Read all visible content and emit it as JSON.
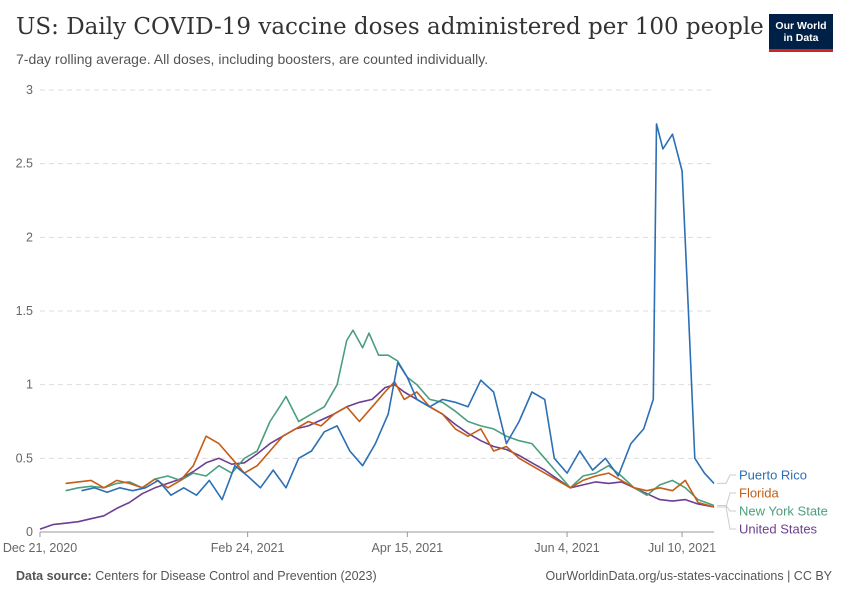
{
  "header": {
    "title": "US: Daily COVID-19 vaccine doses administered per 100 people",
    "subtitle": "7-day rolling average. All doses, including boosters, are counted individually.",
    "logo_line1": "Our World",
    "logo_line2": "in Data"
  },
  "footer": {
    "source_label": "Data source:",
    "source_text": "Centers for Disease Control and Prevention (2023)",
    "credit": "OurWorldinData.org/us-states-vaccinations | CC BY"
  },
  "chart_data": {
    "type": "line",
    "title": "US: Daily COVID-19 vaccine doses administered per 100 people",
    "subtitle": "7-day rolling average. All doses, including boosters, are counted individually.",
    "xlabel": "",
    "ylabel": "",
    "x_range": [
      "2020-12-21",
      "2021-07-20"
    ],
    "ylim": [
      0,
      3
    ],
    "y_ticks": [
      0,
      0.5,
      1,
      1.5,
      2,
      2.5,
      3
    ],
    "y_tick_labels": [
      "0",
      "0.5",
      "1",
      "1.5",
      "2",
      "2.5",
      "3"
    ],
    "x_ticks": [
      "2020-12-21",
      "2021-02-24",
      "2021-04-15",
      "2021-06-04",
      "2021-07-10"
    ],
    "x_tick_labels": [
      "Dec 21, 2020",
      "Feb 24, 2021",
      "Apr 15, 2021",
      "Jun 4, 2021",
      "Jul 10, 2021"
    ],
    "grid": "horizontal dashed",
    "legend_placement": "right, labels at line ends",
    "series": [
      {
        "name": "United States",
        "color": "#6d3e91",
        "points": [
          [
            "2020-12-21",
            0.02
          ],
          [
            "2020-12-25",
            0.05
          ],
          [
            "2020-12-29",
            0.06
          ],
          [
            "2021-01-02",
            0.07
          ],
          [
            "2021-01-06",
            0.09
          ],
          [
            "2021-01-10",
            0.11
          ],
          [
            "2021-01-14",
            0.16
          ],
          [
            "2021-01-18",
            0.2
          ],
          [
            "2021-01-22",
            0.26
          ],
          [
            "2021-01-26",
            0.3
          ],
          [
            "2021-01-30",
            0.33
          ],
          [
            "2021-02-03",
            0.36
          ],
          [
            "2021-02-07",
            0.41
          ],
          [
            "2021-02-11",
            0.47
          ],
          [
            "2021-02-15",
            0.5
          ],
          [
            "2021-02-19",
            0.46
          ],
          [
            "2021-02-23",
            0.47
          ],
          [
            "2021-02-27",
            0.53
          ],
          [
            "2021-03-03",
            0.6
          ],
          [
            "2021-03-07",
            0.65
          ],
          [
            "2021-03-11",
            0.7
          ],
          [
            "2021-03-15",
            0.72
          ],
          [
            "2021-03-19",
            0.76
          ],
          [
            "2021-03-23",
            0.8
          ],
          [
            "2021-03-27",
            0.85
          ],
          [
            "2021-03-31",
            0.88
          ],
          [
            "2021-04-04",
            0.9
          ],
          [
            "2021-04-08",
            0.98
          ],
          [
            "2021-04-11",
            1.0
          ],
          [
            "2021-04-14",
            0.95
          ],
          [
            "2021-04-18",
            0.9
          ],
          [
            "2021-04-22",
            0.85
          ],
          [
            "2021-04-26",
            0.8
          ],
          [
            "2021-04-30",
            0.73
          ],
          [
            "2021-05-04",
            0.67
          ],
          [
            "2021-05-08",
            0.62
          ],
          [
            "2021-05-12",
            0.58
          ],
          [
            "2021-05-16",
            0.56
          ],
          [
            "2021-05-20",
            0.52
          ],
          [
            "2021-05-24",
            0.47
          ],
          [
            "2021-05-28",
            0.42
          ],
          [
            "2021-06-01",
            0.36
          ],
          [
            "2021-06-05",
            0.3
          ],
          [
            "2021-06-09",
            0.32
          ],
          [
            "2021-06-13",
            0.34
          ],
          [
            "2021-06-17",
            0.33
          ],
          [
            "2021-06-21",
            0.34
          ],
          [
            "2021-06-25",
            0.3
          ],
          [
            "2021-06-29",
            0.26
          ],
          [
            "2021-07-03",
            0.22
          ],
          [
            "2021-07-07",
            0.21
          ],
          [
            "2021-07-11",
            0.22
          ],
          [
            "2021-07-15",
            0.19
          ],
          [
            "2021-07-20",
            0.17
          ]
        ]
      },
      {
        "name": "New York State",
        "color": "#4c9f7e",
        "points": [
          [
            "2020-12-29",
            0.28
          ],
          [
            "2021-01-02",
            0.3
          ],
          [
            "2021-01-06",
            0.31
          ],
          [
            "2021-01-10",
            0.3
          ],
          [
            "2021-01-14",
            0.33
          ],
          [
            "2021-01-18",
            0.34
          ],
          [
            "2021-01-22",
            0.3
          ],
          [
            "2021-01-26",
            0.36
          ],
          [
            "2021-01-30",
            0.38
          ],
          [
            "2021-02-03",
            0.35
          ],
          [
            "2021-02-07",
            0.4
          ],
          [
            "2021-02-11",
            0.38
          ],
          [
            "2021-02-15",
            0.45
          ],
          [
            "2021-02-19",
            0.4
          ],
          [
            "2021-02-23",
            0.5
          ],
          [
            "2021-02-27",
            0.55
          ],
          [
            "2021-03-03",
            0.75
          ],
          [
            "2021-03-06",
            0.85
          ],
          [
            "2021-03-08",
            0.92
          ],
          [
            "2021-03-12",
            0.75
          ],
          [
            "2021-03-16",
            0.8
          ],
          [
            "2021-03-20",
            0.85
          ],
          [
            "2021-03-24",
            1.0
          ],
          [
            "2021-03-27",
            1.3
          ],
          [
            "2021-03-29",
            1.37
          ],
          [
            "2021-04-01",
            1.25
          ],
          [
            "2021-04-03",
            1.35
          ],
          [
            "2021-04-06",
            1.2
          ],
          [
            "2021-04-09",
            1.2
          ],
          [
            "2021-04-12",
            1.16
          ],
          [
            "2021-04-15",
            1.05
          ],
          [
            "2021-04-18",
            1.0
          ],
          [
            "2021-04-22",
            0.9
          ],
          [
            "2021-04-26",
            0.88
          ],
          [
            "2021-04-30",
            0.82
          ],
          [
            "2021-05-04",
            0.75
          ],
          [
            "2021-05-08",
            0.72
          ],
          [
            "2021-05-12",
            0.7
          ],
          [
            "2021-05-16",
            0.65
          ],
          [
            "2021-05-20",
            0.62
          ],
          [
            "2021-05-24",
            0.6
          ],
          [
            "2021-05-28",
            0.5
          ],
          [
            "2021-06-01",
            0.4
          ],
          [
            "2021-06-05",
            0.3
          ],
          [
            "2021-06-09",
            0.38
          ],
          [
            "2021-06-13",
            0.4
          ],
          [
            "2021-06-17",
            0.45
          ],
          [
            "2021-06-21",
            0.38
          ],
          [
            "2021-06-25",
            0.3
          ],
          [
            "2021-06-29",
            0.25
          ],
          [
            "2021-07-03",
            0.32
          ],
          [
            "2021-07-07",
            0.35
          ],
          [
            "2021-07-11",
            0.3
          ],
          [
            "2021-07-15",
            0.22
          ],
          [
            "2021-07-20",
            0.18
          ]
        ]
      },
      {
        "name": "Florida",
        "color": "#c45d16",
        "points": [
          [
            "2020-12-29",
            0.33
          ],
          [
            "2021-01-02",
            0.34
          ],
          [
            "2021-01-06",
            0.35
          ],
          [
            "2021-01-10",
            0.3
          ],
          [
            "2021-01-14",
            0.35
          ],
          [
            "2021-01-18",
            0.33
          ],
          [
            "2021-01-22",
            0.3
          ],
          [
            "2021-01-26",
            0.36
          ],
          [
            "2021-01-30",
            0.3
          ],
          [
            "2021-02-03",
            0.35
          ],
          [
            "2021-02-07",
            0.45
          ],
          [
            "2021-02-11",
            0.65
          ],
          [
            "2021-02-15",
            0.6
          ],
          [
            "2021-02-19",
            0.5
          ],
          [
            "2021-02-23",
            0.4
          ],
          [
            "2021-02-27",
            0.45
          ],
          [
            "2021-03-03",
            0.55
          ],
          [
            "2021-03-07",
            0.65
          ],
          [
            "2021-03-11",
            0.7
          ],
          [
            "2021-03-15",
            0.75
          ],
          [
            "2021-03-19",
            0.72
          ],
          [
            "2021-03-23",
            0.8
          ],
          [
            "2021-03-27",
            0.85
          ],
          [
            "2021-03-31",
            0.75
          ],
          [
            "2021-04-04",
            0.85
          ],
          [
            "2021-04-08",
            0.95
          ],
          [
            "2021-04-11",
            1.02
          ],
          [
            "2021-04-14",
            0.9
          ],
          [
            "2021-04-18",
            0.95
          ],
          [
            "2021-04-22",
            0.85
          ],
          [
            "2021-04-26",
            0.8
          ],
          [
            "2021-04-30",
            0.7
          ],
          [
            "2021-05-04",
            0.65
          ],
          [
            "2021-05-08",
            0.7
          ],
          [
            "2021-05-12",
            0.55
          ],
          [
            "2021-05-16",
            0.58
          ],
          [
            "2021-05-20",
            0.5
          ],
          [
            "2021-05-24",
            0.45
          ],
          [
            "2021-05-28",
            0.4
          ],
          [
            "2021-06-01",
            0.35
          ],
          [
            "2021-06-05",
            0.3
          ],
          [
            "2021-06-09",
            0.35
          ],
          [
            "2021-06-13",
            0.38
          ],
          [
            "2021-06-17",
            0.4
          ],
          [
            "2021-06-21",
            0.35
          ],
          [
            "2021-06-25",
            0.3
          ],
          [
            "2021-06-29",
            0.28
          ],
          [
            "2021-07-03",
            0.3
          ],
          [
            "2021-07-07",
            0.28
          ],
          [
            "2021-07-11",
            0.35
          ],
          [
            "2021-07-15",
            0.2
          ],
          [
            "2021-07-20",
            0.17
          ]
        ]
      },
      {
        "name": "Puerto Rico",
        "color": "#2c6fb5",
        "points": [
          [
            "2021-01-03",
            0.28
          ],
          [
            "2021-01-07",
            0.3
          ],
          [
            "2021-01-11",
            0.27
          ],
          [
            "2021-01-15",
            0.3
          ],
          [
            "2021-01-19",
            0.28
          ],
          [
            "2021-01-23",
            0.3
          ],
          [
            "2021-01-27",
            0.35
          ],
          [
            "2021-01-31",
            0.25
          ],
          [
            "2021-02-04",
            0.3
          ],
          [
            "2021-02-08",
            0.25
          ],
          [
            "2021-02-12",
            0.35
          ],
          [
            "2021-02-16",
            0.22
          ],
          [
            "2021-02-20",
            0.45
          ],
          [
            "2021-02-24",
            0.38
          ],
          [
            "2021-02-28",
            0.3
          ],
          [
            "2021-03-04",
            0.42
          ],
          [
            "2021-03-08",
            0.3
          ],
          [
            "2021-03-12",
            0.5
          ],
          [
            "2021-03-16",
            0.55
          ],
          [
            "2021-03-20",
            0.68
          ],
          [
            "2021-03-24",
            0.72
          ],
          [
            "2021-03-28",
            0.55
          ],
          [
            "2021-04-01",
            0.45
          ],
          [
            "2021-04-05",
            0.6
          ],
          [
            "2021-04-09",
            0.8
          ],
          [
            "2021-04-12",
            1.15
          ],
          [
            "2021-04-15",
            1.05
          ],
          [
            "2021-04-18",
            0.9
          ],
          [
            "2021-04-22",
            0.85
          ],
          [
            "2021-04-26",
            0.9
          ],
          [
            "2021-04-30",
            0.88
          ],
          [
            "2021-05-04",
            0.85
          ],
          [
            "2021-05-08",
            1.03
          ],
          [
            "2021-05-12",
            0.95
          ],
          [
            "2021-05-16",
            0.6
          ],
          [
            "2021-05-20",
            0.75
          ],
          [
            "2021-05-24",
            0.95
          ],
          [
            "2021-05-28",
            0.9
          ],
          [
            "2021-05-31",
            0.5
          ],
          [
            "2021-06-04",
            0.4
          ],
          [
            "2021-06-08",
            0.55
          ],
          [
            "2021-06-12",
            0.42
          ],
          [
            "2021-06-16",
            0.5
          ],
          [
            "2021-06-20",
            0.38
          ],
          [
            "2021-06-24",
            0.6
          ],
          [
            "2021-06-28",
            0.7
          ],
          [
            "2021-07-01",
            0.9
          ],
          [
            "2021-07-02",
            2.77
          ],
          [
            "2021-07-04",
            2.6
          ],
          [
            "2021-07-07",
            2.7
          ],
          [
            "2021-07-10",
            2.45
          ],
          [
            "2021-07-12",
            1.5
          ],
          [
            "2021-07-14",
            0.5
          ],
          [
            "2021-07-17",
            0.4
          ],
          [
            "2021-07-20",
            0.33
          ]
        ]
      }
    ]
  }
}
